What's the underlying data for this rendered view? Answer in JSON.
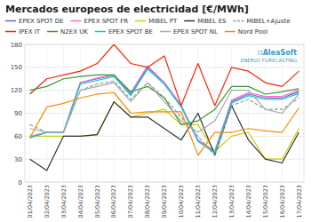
{
  "chart_data": {
    "type": "line",
    "title": "Mercados europeos de electricidad [€/MWh]",
    "categories": [
      "01/04/2023",
      "02/04/2023",
      "03/04/2023",
      "04/04/2023",
      "05/04/2023",
      "06/04/2023",
      "07/04/2023",
      "08/04/2023",
      "09/04/2023",
      "10/04/2023",
      "11/04/2023",
      "12/04/2023",
      "13/04/2023",
      "14/04/2023",
      "15/04/2023",
      "16/04/2023",
      "17/04/2023"
    ],
    "series": [
      {
        "name": "EPEX SPOT DE",
        "color": "#6666CC",
        "line_style": "solid",
        "values": [
          58,
          65,
          65,
          130,
          135,
          140,
          115,
          150,
          130,
          100,
          55,
          40,
          105,
          115,
          110,
          110,
          118
        ]
      },
      {
        "name": "EPEX SPOT FR",
        "color": "#FF66CC",
        "line_style": "solid",
        "values": [
          60,
          65,
          65,
          130,
          136,
          140,
          117,
          152,
          130,
          100,
          55,
          40,
          107,
          117,
          112,
          112,
          120
        ]
      },
      {
        "name": "MIBEL PT",
        "color": "#CCCC00",
        "line_style": "solid",
        "values": [
          60,
          60,
          60,
          60,
          62,
          105,
          85,
          90,
          95,
          75,
          75,
          40,
          60,
          65,
          30,
          30,
          70
        ]
      },
      {
        "name": "MIBEL ES",
        "color": "#333333",
        "line_style": "solid",
        "values": [
          30,
          15,
          60,
          60,
          62,
          105,
          85,
          85,
          70,
          55,
          90,
          35,
          100,
          55,
          30,
          25,
          65
        ]
      },
      {
        "name": "MIBEL+Ajuste",
        "color": "#999999",
        "line_style": "dashed",
        "values": [
          75,
          65,
          65,
          120,
          128,
          132,
          108,
          130,
          110,
          85,
          60,
          35,
          100,
          108,
          95,
          95,
          110
        ]
      },
      {
        "name": "IPEX IT",
        "color": "#FF2200",
        "line_style": "solid",
        "values": [
          115,
          135,
          140,
          145,
          155,
          180,
          155,
          150,
          165,
          100,
          155,
          100,
          150,
          145,
          130,
          125,
          145
        ]
      },
      {
        "name": "N2EX UK",
        "color": "#339933",
        "line_style": "solid",
        "values": [
          120,
          125,
          135,
          138,
          140,
          140,
          118,
          125,
          110,
          75,
          80,
          95,
          125,
          125,
          115,
          118,
          122
        ]
      },
      {
        "name": "EPEX SPOT BE",
        "color": "#00CCCC",
        "line_style": "solid",
        "values": [
          58,
          65,
          65,
          128,
          133,
          138,
          113,
          148,
          128,
          98,
          53,
          38,
          103,
          113,
          108,
          108,
          116
        ]
      },
      {
        "name": "EPEX SPOT NL",
        "color": "#AAAAAA",
        "line_style": "solid",
        "values": [
          70,
          65,
          65,
          120,
          125,
          130,
          105,
          130,
          105,
          80,
          65,
          80,
          120,
          120,
          95,
          90,
          115
        ]
      },
      {
        "name": "Nord Pool",
        "color": "#FF8800",
        "line_style": "solid",
        "values": [
          58,
          98,
          103,
          110,
          115,
          117,
          90,
          92,
          92,
          92,
          35,
          65,
          65,
          70,
          67,
          65,
          97
        ]
      }
    ],
    "annotations": [
      "∷AleaSoft",
      "ENERGY FORECASTING"
    ],
    "ylim": [
      0,
      180
    ],
    "yticks": [
      0,
      30,
      60,
      90,
      120,
      150,
      180
    ],
    "grid": true,
    "legend": "top"
  }
}
